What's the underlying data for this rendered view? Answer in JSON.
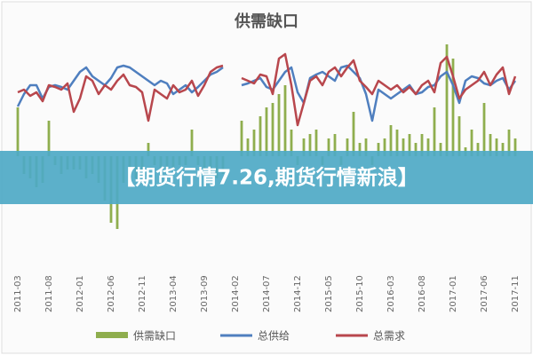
{
  "chart_data": {
    "type": "combo",
    "title": "供需缺口",
    "categories": [
      "2011-03",
      null,
      null,
      null,
      null,
      "2011-08",
      null,
      null,
      null,
      null,
      "2012-01",
      null,
      null,
      null,
      null,
      "2012-06",
      null,
      null,
      null,
      null,
      "2012-11",
      null,
      null,
      null,
      null,
      "2013-04",
      null,
      null,
      null,
      null,
      "2013-09",
      null,
      null,
      null,
      null,
      "2014-02",
      null,
      null,
      null,
      null,
      "2014-07",
      null,
      null,
      null,
      null,
      "2014-12",
      null,
      null,
      null,
      null,
      "2015-05",
      null,
      null,
      null,
      null,
      "2015-10",
      null,
      null,
      null,
      null,
      "2016-03",
      null,
      null,
      null,
      null,
      "2016-08",
      null,
      null,
      null,
      null,
      "2017-01",
      null,
      null,
      null,
      null,
      "2017-06",
      null,
      null,
      null,
      null,
      "2017-11"
    ],
    "series": [
      {
        "name": "供需缺口",
        "type": "bar",
        "color": "#8fae4e",
        "values": [
          55,
          -20,
          -25,
          -35,
          -30,
          40,
          -10,
          -20,
          -15,
          -15,
          -15,
          -25,
          -20,
          -30,
          -50,
          -75,
          -82,
          -30,
          -20,
          -25,
          -15,
          15,
          -10,
          -15,
          -20,
          -15,
          -10,
          -10,
          30,
          -10,
          -15,
          -20,
          -25,
          -20,
          null,
          null,
          40,
          20,
          30,
          45,
          55,
          60,
          70,
          80,
          30,
          -10,
          20,
          25,
          30,
          -10,
          20,
          25,
          -10,
          20,
          50,
          15,
          20,
          -10,
          15,
          20,
          35,
          30,
          20,
          25,
          15,
          25,
          20,
          55,
          15,
          126,
          110,
          45,
          10,
          30,
          15,
          60,
          25,
          20,
          15,
          30,
          20
        ]
      },
      {
        "name": "总供给",
        "type": "line",
        "color": "#4f7fbf",
        "values": [
          56,
          70,
          80,
          80,
          65,
          78,
          80,
          78,
          75,
          85,
          95,
          100,
          90,
          85,
          80,
          88,
          100,
          102,
          100,
          95,
          90,
          85,
          80,
          85,
          82,
          70,
          75,
          80,
          72,
          78,
          85,
          92,
          95,
          100,
          null,
          null,
          80,
          82,
          85,
          88,
          78,
          75,
          85,
          95,
          100,
          72,
          60,
          88,
          92,
          95,
          90,
          85,
          100,
          102,
          95,
          88,
          70,
          40,
          75,
          70,
          65,
          70,
          75,
          80,
          70,
          72,
          78,
          80,
          90,
          95,
          80,
          60,
          85,
          90,
          88,
          82,
          80,
          85,
          88,
          75,
          85
        ]
      },
      {
        "name": "总需求",
        "type": "line",
        "color": "#b8474d",
        "values": [
          72,
          75,
          68,
          72,
          62,
          80,
          78,
          75,
          82,
          50,
          65,
          90,
          85,
          70,
          80,
          75,
          85,
          92,
          80,
          78,
          72,
          40,
          75,
          70,
          65,
          80,
          72,
          75,
          85,
          68,
          80,
          95,
          100,
          102,
          null,
          null,
          88,
          85,
          82,
          92,
          90,
          70,
          110,
          115,
          80,
          35,
          60,
          85,
          90,
          80,
          95,
          100,
          90,
          100,
          108,
          85,
          78,
          70,
          85,
          80,
          75,
          80,
          72,
          78,
          70,
          80,
          85,
          72,
          105,
          112,
          90,
          65,
          75,
          80,
          85,
          95,
          80,
          92,
          100,
          70,
          90
        ]
      }
    ],
    "ylim": [
      -94,
      126
    ]
  },
  "overlay": {
    "text": "【期货行情7.26,期货行情新浪】"
  }
}
